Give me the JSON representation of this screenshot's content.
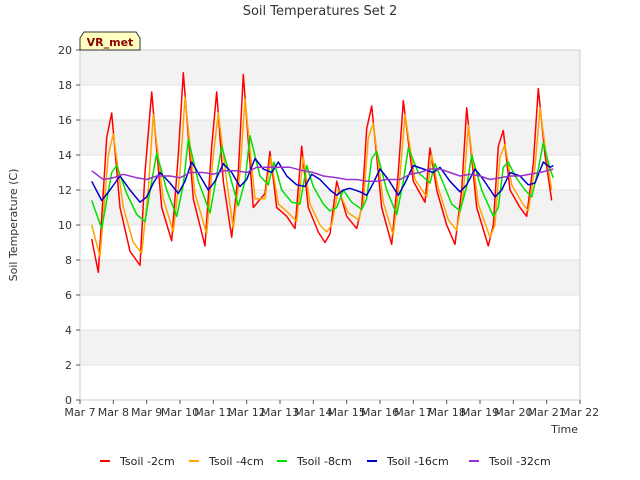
{
  "chart_data": {
    "type": "line",
    "title": "Soil Temperatures Set 2",
    "xlabel": "Time",
    "ylabel": "Soil Temperature (C)",
    "badge": "VR_met",
    "ylim": [
      0,
      20
    ],
    "yticks": [
      0,
      2,
      4,
      6,
      8,
      10,
      12,
      14,
      16,
      18,
      20
    ],
    "xlim": [
      7,
      22
    ],
    "xticks": [
      {
        "x": 7,
        "label": "Mar 7"
      },
      {
        "x": 8,
        "label": "Mar 8"
      },
      {
        "x": 9,
        "label": "Mar 9"
      },
      {
        "x": 10,
        "label": "Mar 10"
      },
      {
        "x": 11,
        "label": "Mar 11"
      },
      {
        "x": 12,
        "label": "Mar 12"
      },
      {
        "x": 13,
        "label": "Mar 13"
      },
      {
        "x": 14,
        "label": "Mar 14"
      },
      {
        "x": 15,
        "label": "Mar 15"
      },
      {
        "x": 16,
        "label": "Mar 16"
      },
      {
        "x": 17,
        "label": "Mar 17"
      },
      {
        "x": 18,
        "label": "Mar 18"
      },
      {
        "x": 19,
        "label": "Mar 19"
      },
      {
        "x": 20,
        "label": "Mar 20"
      },
      {
        "x": 21,
        "label": "Mar 21"
      },
      {
        "x": 22,
        "label": "Mar 22"
      }
    ],
    "grid": "horizontal alternating bands",
    "legend_position": "bottom",
    "series": [
      {
        "name": "Tsoil -2cm",
        "color": "#ff0000",
        "points": [
          [
            7.35,
            9.2
          ],
          [
            7.55,
            7.3
          ],
          [
            7.8,
            15.0
          ],
          [
            7.95,
            16.4
          ],
          [
            8.2,
            11.0
          ],
          [
            8.5,
            8.5
          ],
          [
            8.8,
            7.7
          ],
          [
            8.95,
            13.0
          ],
          [
            9.15,
            17.6
          ],
          [
            9.45,
            11.0
          ],
          [
            9.75,
            9.1
          ],
          [
            9.95,
            14.0
          ],
          [
            10.1,
            18.7
          ],
          [
            10.4,
            11.5
          ],
          [
            10.75,
            8.8
          ],
          [
            10.95,
            14.5
          ],
          [
            11.1,
            17.6
          ],
          [
            11.3,
            12.5
          ],
          [
            11.55,
            9.3
          ],
          [
            11.75,
            13.0
          ],
          [
            11.9,
            18.6
          ],
          [
            12.2,
            11.0
          ],
          [
            12.55,
            11.8
          ],
          [
            12.7,
            14.2
          ],
          [
            12.9,
            11.0
          ],
          [
            13.2,
            10.5
          ],
          [
            13.45,
            9.8
          ],
          [
            13.65,
            14.5
          ],
          [
            13.85,
            11.0
          ],
          [
            14.15,
            9.6
          ],
          [
            14.35,
            9.0
          ],
          [
            14.5,
            9.5
          ],
          [
            14.7,
            12.5
          ],
          [
            15.0,
            10.5
          ],
          [
            15.3,
            9.8
          ],
          [
            15.45,
            11.0
          ],
          [
            15.6,
            15.5
          ],
          [
            15.75,
            16.8
          ],
          [
            16.05,
            11.0
          ],
          [
            16.35,
            8.9
          ],
          [
            16.55,
            13.0
          ],
          [
            16.7,
            17.1
          ],
          [
            17.0,
            12.5
          ],
          [
            17.35,
            11.3
          ],
          [
            17.5,
            14.4
          ],
          [
            17.7,
            12.0
          ],
          [
            18.0,
            10.0
          ],
          [
            18.25,
            8.9
          ],
          [
            18.45,
            12.0
          ],
          [
            18.6,
            16.7
          ],
          [
            18.9,
            11.0
          ],
          [
            19.25,
            8.8
          ],
          [
            19.4,
            10.0
          ],
          [
            19.55,
            14.5
          ],
          [
            19.7,
            15.4
          ],
          [
            19.9,
            12.0
          ],
          [
            20.2,
            11.0
          ],
          [
            20.4,
            10.5
          ],
          [
            20.6,
            13.5
          ],
          [
            20.75,
            17.8
          ],
          [
            20.95,
            14.0
          ],
          [
            21.15,
            11.4
          ]
        ]
      },
      {
        "name": "Tsoil -4cm",
        "color": "#ffa500",
        "points": [
          [
            7.35,
            10.0
          ],
          [
            7.6,
            8.2
          ],
          [
            7.85,
            14.0
          ],
          [
            8.0,
            15.2
          ],
          [
            8.3,
            11.0
          ],
          [
            8.6,
            9.0
          ],
          [
            8.85,
            8.4
          ],
          [
            9.05,
            12.0
          ],
          [
            9.2,
            16.3
          ],
          [
            9.5,
            11.5
          ],
          [
            9.8,
            9.6
          ],
          [
            10.0,
            13.0
          ],
          [
            10.15,
            17.3
          ],
          [
            10.45,
            11.8
          ],
          [
            10.8,
            9.5
          ],
          [
            11.0,
            14.0
          ],
          [
            11.15,
            16.4
          ],
          [
            11.4,
            12.5
          ],
          [
            11.6,
            9.8
          ],
          [
            11.8,
            13.0
          ],
          [
            11.95,
            17.2
          ],
          [
            12.25,
            11.5
          ],
          [
            12.55,
            11.5
          ],
          [
            12.72,
            13.9
          ],
          [
            12.95,
            11.2
          ],
          [
            13.25,
            10.7
          ],
          [
            13.5,
            10.2
          ],
          [
            13.7,
            13.9
          ],
          [
            13.9,
            11.2
          ],
          [
            14.2,
            10.0
          ],
          [
            14.4,
            9.6
          ],
          [
            14.55,
            10.0
          ],
          [
            14.75,
            12.0
          ],
          [
            15.05,
            10.7
          ],
          [
            15.35,
            10.3
          ],
          [
            15.5,
            11.2
          ],
          [
            15.65,
            15.0
          ],
          [
            15.8,
            15.8
          ],
          [
            16.1,
            11.3
          ],
          [
            16.4,
            9.4
          ],
          [
            16.6,
            12.8
          ],
          [
            16.75,
            16.3
          ],
          [
            17.05,
            12.6
          ],
          [
            17.4,
            11.6
          ],
          [
            17.55,
            14.0
          ],
          [
            17.75,
            12.1
          ],
          [
            18.05,
            10.3
          ],
          [
            18.3,
            9.7
          ],
          [
            18.5,
            11.8
          ],
          [
            18.65,
            15.7
          ],
          [
            18.95,
            11.2
          ],
          [
            19.3,
            9.3
          ],
          [
            19.45,
            10.0
          ],
          [
            19.6,
            13.9
          ],
          [
            19.75,
            14.6
          ],
          [
            19.95,
            12.3
          ],
          [
            20.25,
            11.3
          ],
          [
            20.45,
            10.8
          ],
          [
            20.65,
            13.3
          ],
          [
            20.8,
            16.7
          ],
          [
            21.0,
            13.8
          ],
          [
            21.15,
            12.0
          ]
        ]
      },
      {
        "name": "Tsoil -8cm",
        "color": "#00e000",
        "points": [
          [
            7.35,
            11.4
          ],
          [
            7.65,
            9.8
          ],
          [
            7.95,
            13.0
          ],
          [
            8.1,
            13.4
          ],
          [
            8.4,
            11.8
          ],
          [
            8.7,
            10.6
          ],
          [
            8.95,
            10.2
          ],
          [
            9.15,
            12.5
          ],
          [
            9.3,
            14.1
          ],
          [
            9.6,
            12.0
          ],
          [
            9.9,
            10.5
          ],
          [
            10.1,
            12.3
          ],
          [
            10.25,
            14.9
          ],
          [
            10.55,
            12.5
          ],
          [
            10.9,
            10.7
          ],
          [
            11.1,
            12.8
          ],
          [
            11.25,
            14.5
          ],
          [
            11.5,
            12.8
          ],
          [
            11.75,
            11.1
          ],
          [
            11.95,
            12.5
          ],
          [
            12.1,
            15.1
          ],
          [
            12.4,
            12.8
          ],
          [
            12.65,
            12.3
          ],
          [
            12.82,
            13.6
          ],
          [
            13.05,
            12.0
          ],
          [
            13.35,
            11.3
          ],
          [
            13.6,
            11.2
          ],
          [
            13.8,
            13.4
          ],
          [
            14.0,
            12.2
          ],
          [
            14.3,
            11.2
          ],
          [
            14.5,
            10.8
          ],
          [
            14.7,
            11.0
          ],
          [
            14.9,
            12.0
          ],
          [
            15.15,
            11.3
          ],
          [
            15.45,
            10.9
          ],
          [
            15.6,
            11.5
          ],
          [
            15.75,
            13.8
          ],
          [
            15.9,
            14.2
          ],
          [
            16.2,
            12.0
          ],
          [
            16.5,
            10.6
          ],
          [
            16.7,
            12.5
          ],
          [
            16.85,
            14.4
          ],
          [
            17.15,
            13.0
          ],
          [
            17.5,
            12.4
          ],
          [
            17.65,
            13.5
          ],
          [
            17.85,
            12.6
          ],
          [
            18.15,
            11.2
          ],
          [
            18.4,
            10.8
          ],
          [
            18.6,
            12.2
          ],
          [
            18.75,
            14.0
          ],
          [
            19.05,
            12.0
          ],
          [
            19.4,
            10.5
          ],
          [
            19.55,
            11.0
          ],
          [
            19.7,
            13.3
          ],
          [
            19.85,
            13.6
          ],
          [
            20.05,
            12.8
          ],
          [
            20.35,
            12.0
          ],
          [
            20.55,
            11.6
          ],
          [
            20.75,
            13.2
          ],
          [
            20.9,
            14.7
          ],
          [
            21.1,
            13.2
          ],
          [
            21.2,
            12.7
          ]
        ]
      },
      {
        "name": "Tsoil -16cm",
        "color": "#0000cd",
        "points": [
          [
            7.35,
            12.5
          ],
          [
            7.65,
            11.4
          ],
          [
            7.9,
            12.0
          ],
          [
            8.2,
            12.8
          ],
          [
            8.5,
            12.0
          ],
          [
            8.8,
            11.3
          ],
          [
            9.0,
            11.6
          ],
          [
            9.2,
            12.4
          ],
          [
            9.4,
            13.0
          ],
          [
            9.7,
            12.4
          ],
          [
            9.95,
            11.8
          ],
          [
            10.15,
            12.5
          ],
          [
            10.35,
            13.6
          ],
          [
            10.6,
            12.8
          ],
          [
            10.85,
            12.0
          ],
          [
            11.05,
            12.5
          ],
          [
            11.3,
            13.5
          ],
          [
            11.55,
            13.0
          ],
          [
            11.8,
            12.2
          ],
          [
            12.0,
            12.6
          ],
          [
            12.25,
            13.8
          ],
          [
            12.5,
            13.2
          ],
          [
            12.75,
            13.0
          ],
          [
            12.95,
            13.6
          ],
          [
            13.2,
            12.8
          ],
          [
            13.5,
            12.3
          ],
          [
            13.75,
            12.2
          ],
          [
            13.95,
            12.9
          ],
          [
            14.2,
            12.6
          ],
          [
            14.5,
            12.0
          ],
          [
            14.7,
            11.7
          ],
          [
            14.9,
            12.0
          ],
          [
            15.1,
            12.1
          ],
          [
            15.4,
            11.9
          ],
          [
            15.6,
            11.7
          ],
          [
            15.8,
            12.4
          ],
          [
            16.0,
            13.2
          ],
          [
            16.25,
            12.6
          ],
          [
            16.55,
            11.7
          ],
          [
            16.75,
            12.4
          ],
          [
            17.0,
            13.4
          ],
          [
            17.3,
            13.2
          ],
          [
            17.6,
            13.0
          ],
          [
            17.8,
            13.3
          ],
          [
            18.1,
            12.5
          ],
          [
            18.4,
            11.9
          ],
          [
            18.6,
            12.3
          ],
          [
            18.85,
            13.2
          ],
          [
            19.1,
            12.6
          ],
          [
            19.45,
            11.6
          ],
          [
            19.65,
            12.0
          ],
          [
            19.9,
            13.0
          ],
          [
            20.2,
            12.8
          ],
          [
            20.45,
            12.3
          ],
          [
            20.65,
            12.4
          ],
          [
            20.9,
            13.6
          ],
          [
            21.1,
            13.3
          ],
          [
            21.2,
            13.4
          ]
        ]
      },
      {
        "name": "Tsoil -32cm",
        "color": "#9932cc",
        "points": [
          [
            7.35,
            13.1
          ],
          [
            7.7,
            12.6
          ],
          [
            8.0,
            12.7
          ],
          [
            8.3,
            12.9
          ],
          [
            8.7,
            12.7
          ],
          [
            9.0,
            12.6
          ],
          [
            9.3,
            12.8
          ],
          [
            9.7,
            12.8
          ],
          [
            10.0,
            12.7
          ],
          [
            10.3,
            13.0
          ],
          [
            10.7,
            13.0
          ],
          [
            11.0,
            12.9
          ],
          [
            11.3,
            13.1
          ],
          [
            11.7,
            13.1
          ],
          [
            12.0,
            13.0
          ],
          [
            12.3,
            13.3
          ],
          [
            12.7,
            13.3
          ],
          [
            13.0,
            13.3
          ],
          [
            13.3,
            13.3
          ],
          [
            13.7,
            13.1
          ],
          [
            14.0,
            13.0
          ],
          [
            14.3,
            12.8
          ],
          [
            14.7,
            12.7
          ],
          [
            15.0,
            12.6
          ],
          [
            15.3,
            12.6
          ],
          [
            15.6,
            12.5
          ],
          [
            15.9,
            12.5
          ],
          [
            16.2,
            12.6
          ],
          [
            16.6,
            12.6
          ],
          [
            16.9,
            12.9
          ],
          [
            17.2,
            13.0
          ],
          [
            17.5,
            13.2
          ],
          [
            17.8,
            13.2
          ],
          [
            18.1,
            13.0
          ],
          [
            18.4,
            12.8
          ],
          [
            18.7,
            12.9
          ],
          [
            19.0,
            12.8
          ],
          [
            19.3,
            12.6
          ],
          [
            19.6,
            12.7
          ],
          [
            19.9,
            12.8
          ],
          [
            20.2,
            12.8
          ],
          [
            20.5,
            12.9
          ],
          [
            20.8,
            13.0
          ],
          [
            21.0,
            13.1
          ],
          [
            21.2,
            13.2
          ]
        ]
      }
    ]
  }
}
